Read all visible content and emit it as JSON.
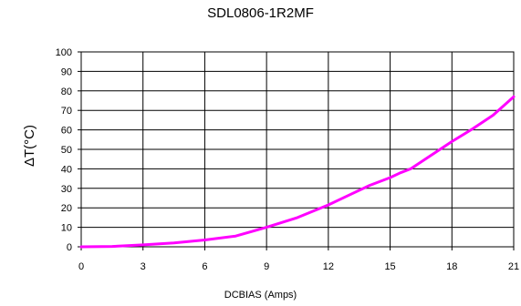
{
  "chart_data": {
    "type": "line",
    "title": "SDL0806-1R2MF",
    "xlabel": "DCBIAS (Amps)",
    "ylabel": "ΔT(°C)",
    "xlim": [
      0,
      21
    ],
    "ylim": [
      0,
      100
    ],
    "xticks": [
      0,
      3,
      6,
      9,
      12,
      15,
      18,
      21
    ],
    "yticks": [
      0,
      10,
      20,
      30,
      40,
      50,
      60,
      70,
      80,
      90,
      100
    ],
    "xtick_labels": [
      "0",
      "3",
      "6",
      "9",
      "12",
      "15",
      "18",
      "21"
    ],
    "ytick_labels": [
      "0",
      "10",
      "20",
      "30",
      "40",
      "50",
      "60",
      "70",
      "80",
      "90",
      "100"
    ],
    "grid": true,
    "series": [
      {
        "color": "#ff00ff",
        "x": [
          0,
          1.5,
          3,
          4.5,
          6,
          7.5,
          9,
          10.5,
          12,
          13,
          14,
          15,
          15.5,
          16,
          17,
          18,
          19,
          20,
          21
        ],
        "y": [
          0,
          0.2,
          1,
          2,
          3.5,
          5.5,
          10,
          15,
          21.5,
          26.5,
          31.5,
          35.5,
          38,
          40,
          47,
          54,
          60.5,
          67.5,
          77
        ]
      }
    ]
  }
}
